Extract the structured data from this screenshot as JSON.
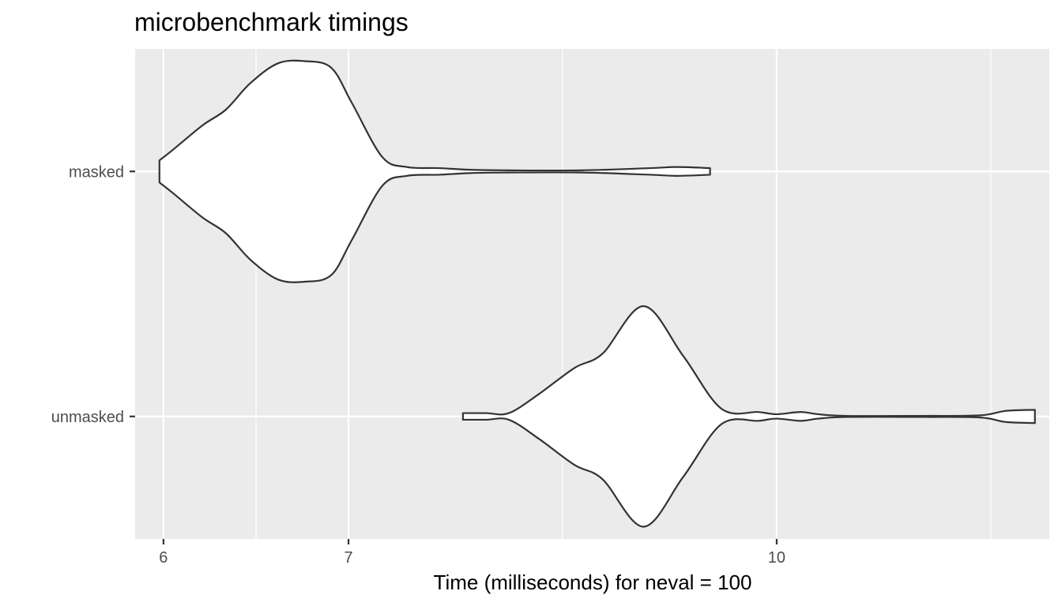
{
  "chart_data": {
    "type": "violin",
    "title": "microbenchmark timings",
    "xlabel": "Time (milliseconds) for neval = 100",
    "ylabel": "",
    "x_scale": "log",
    "x_ticks": [
      6,
      7,
      10
    ],
    "x_tick_labels": [
      "6",
      "7",
      "10"
    ],
    "xlim": [
      5.86,
      12.55
    ],
    "categories": [
      "masked",
      "unmasked"
    ],
    "grid": true,
    "colors": {
      "panel": "#ebebeb",
      "grid": "#ffffff",
      "violin_fill": "#ffffff",
      "violin_stroke": "#333333"
    },
    "series": [
      {
        "category": "masked",
        "min": 5.98,
        "max": 9.46,
        "density": [
          [
            5.98,
            0.1
          ],
          [
            6.05,
            0.2
          ],
          [
            6.2,
            0.42
          ],
          [
            6.32,
            0.56
          ],
          [
            6.45,
            0.8
          ],
          [
            6.6,
            0.98
          ],
          [
            6.75,
            1.0
          ],
          [
            6.9,
            0.94
          ],
          [
            7.02,
            0.62
          ],
          [
            7.2,
            0.13
          ],
          [
            7.35,
            0.04
          ],
          [
            7.55,
            0.03
          ],
          [
            7.75,
            0.015
          ],
          [
            8.0,
            0.01
          ],
          [
            8.5,
            0.01
          ],
          [
            9.0,
            0.03
          ],
          [
            9.2,
            0.04
          ],
          [
            9.46,
            0.03
          ]
        ]
      },
      {
        "category": "unmasked",
        "min": 7.7,
        "max": 12.4,
        "density": [
          [
            7.7,
            0.03
          ],
          [
            7.85,
            0.03
          ],
          [
            8.0,
            0.03
          ],
          [
            8.2,
            0.2
          ],
          [
            8.45,
            0.44
          ],
          [
            8.65,
            0.57
          ],
          [
            8.95,
            1.0
          ],
          [
            9.25,
            0.55
          ],
          [
            9.55,
            0.07
          ],
          [
            9.85,
            0.04
          ],
          [
            10.0,
            0.02
          ],
          [
            10.2,
            0.04
          ],
          [
            10.35,
            0.02
          ],
          [
            10.6,
            0.005
          ],
          [
            11.3,
            0.005
          ],
          [
            11.85,
            0.01
          ],
          [
            12.1,
            0.05
          ],
          [
            12.4,
            0.06
          ]
        ]
      }
    ]
  }
}
